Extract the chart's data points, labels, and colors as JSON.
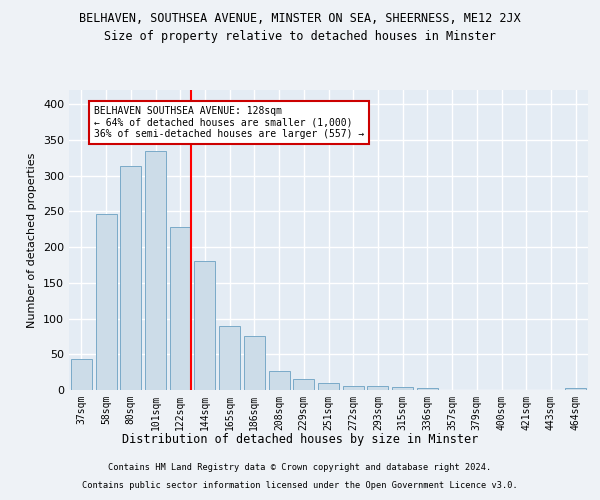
{
  "title1": "BELHAVEN, SOUTHSEA AVENUE, MINSTER ON SEA, SHEERNESS, ME12 2JX",
  "title2": "Size of property relative to detached houses in Minster",
  "xlabel": "Distribution of detached houses by size in Minster",
  "ylabel": "Number of detached properties",
  "categories": [
    "37sqm",
    "58sqm",
    "80sqm",
    "101sqm",
    "122sqm",
    "144sqm",
    "165sqm",
    "186sqm",
    "208sqm",
    "229sqm",
    "251sqm",
    "272sqm",
    "293sqm",
    "315sqm",
    "336sqm",
    "357sqm",
    "379sqm",
    "400sqm",
    "421sqm",
    "443sqm",
    "464sqm"
  ],
  "values": [
    44,
    246,
    313,
    335,
    228,
    180,
    90,
    75,
    26,
    16,
    10,
    5,
    5,
    4,
    3,
    0,
    0,
    0,
    0,
    0,
    3
  ],
  "bar_color": "#ccdce8",
  "bar_edge_color": "#7aaac8",
  "red_line_x": 4.43,
  "annotation_text": "BELHAVEN SOUTHSEA AVENUE: 128sqm\n← 64% of detached houses are smaller (1,000)\n36% of semi-detached houses are larger (557) →",
  "annotation_box_color": "#ffffff",
  "annotation_box_edge": "#cc0000",
  "footer1": "Contains HM Land Registry data © Crown copyright and database right 2024.",
  "footer2": "Contains public sector information licensed under the Open Government Licence v3.0.",
  "background_color": "#eef2f6",
  "plot_bg_color": "#e4ecf4",
  "grid_color": "#ffffff",
  "ylim": [
    0,
    420
  ],
  "yticks": [
    0,
    50,
    100,
    150,
    200,
    250,
    300,
    350,
    400
  ]
}
